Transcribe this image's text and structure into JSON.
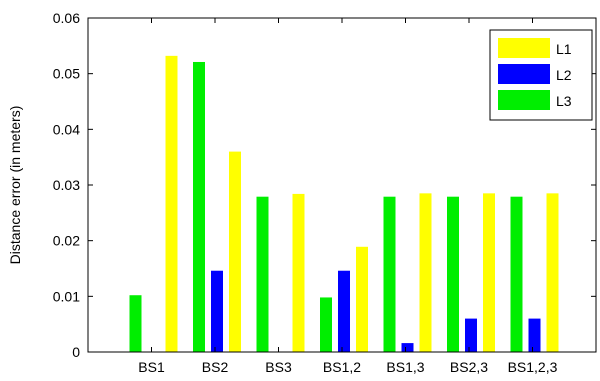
{
  "chart_data": {
    "type": "bar",
    "title": "",
    "xlabel": "",
    "ylabel": "Distance error (in meters)",
    "ylim": [
      0,
      0.06
    ],
    "yticks": [
      "0",
      "0.01",
      "0.02",
      "0.03",
      "0.04",
      "0.05",
      "0.06"
    ],
    "categories": [
      "BS1",
      "BS2",
      "BS3",
      "BS1,2",
      "BS1,3",
      "BS2,3",
      "BS1,2,3"
    ],
    "series": [
      {
        "name": "L1",
        "color": "#ffff00",
        "values": [
          0.0532,
          0.036,
          0.0284,
          0.0189,
          0.0285,
          0.0285,
          0.0285
        ]
      },
      {
        "name": "L2",
        "color": "#0000ff",
        "values": [
          0,
          0.0146,
          0,
          0.0146,
          0.0016,
          0.006,
          0.006
        ]
      },
      {
        "name": "L3",
        "color": "#00ee00",
        "values": [
          0.0102,
          0.0521,
          0.0279,
          0.0098,
          0.0279,
          0.0279,
          0.0279
        ]
      }
    ],
    "bar_order_within_group": [
      "L3",
      "L2",
      "L1"
    ],
    "legend_position": "top-right",
    "grid": false
  }
}
